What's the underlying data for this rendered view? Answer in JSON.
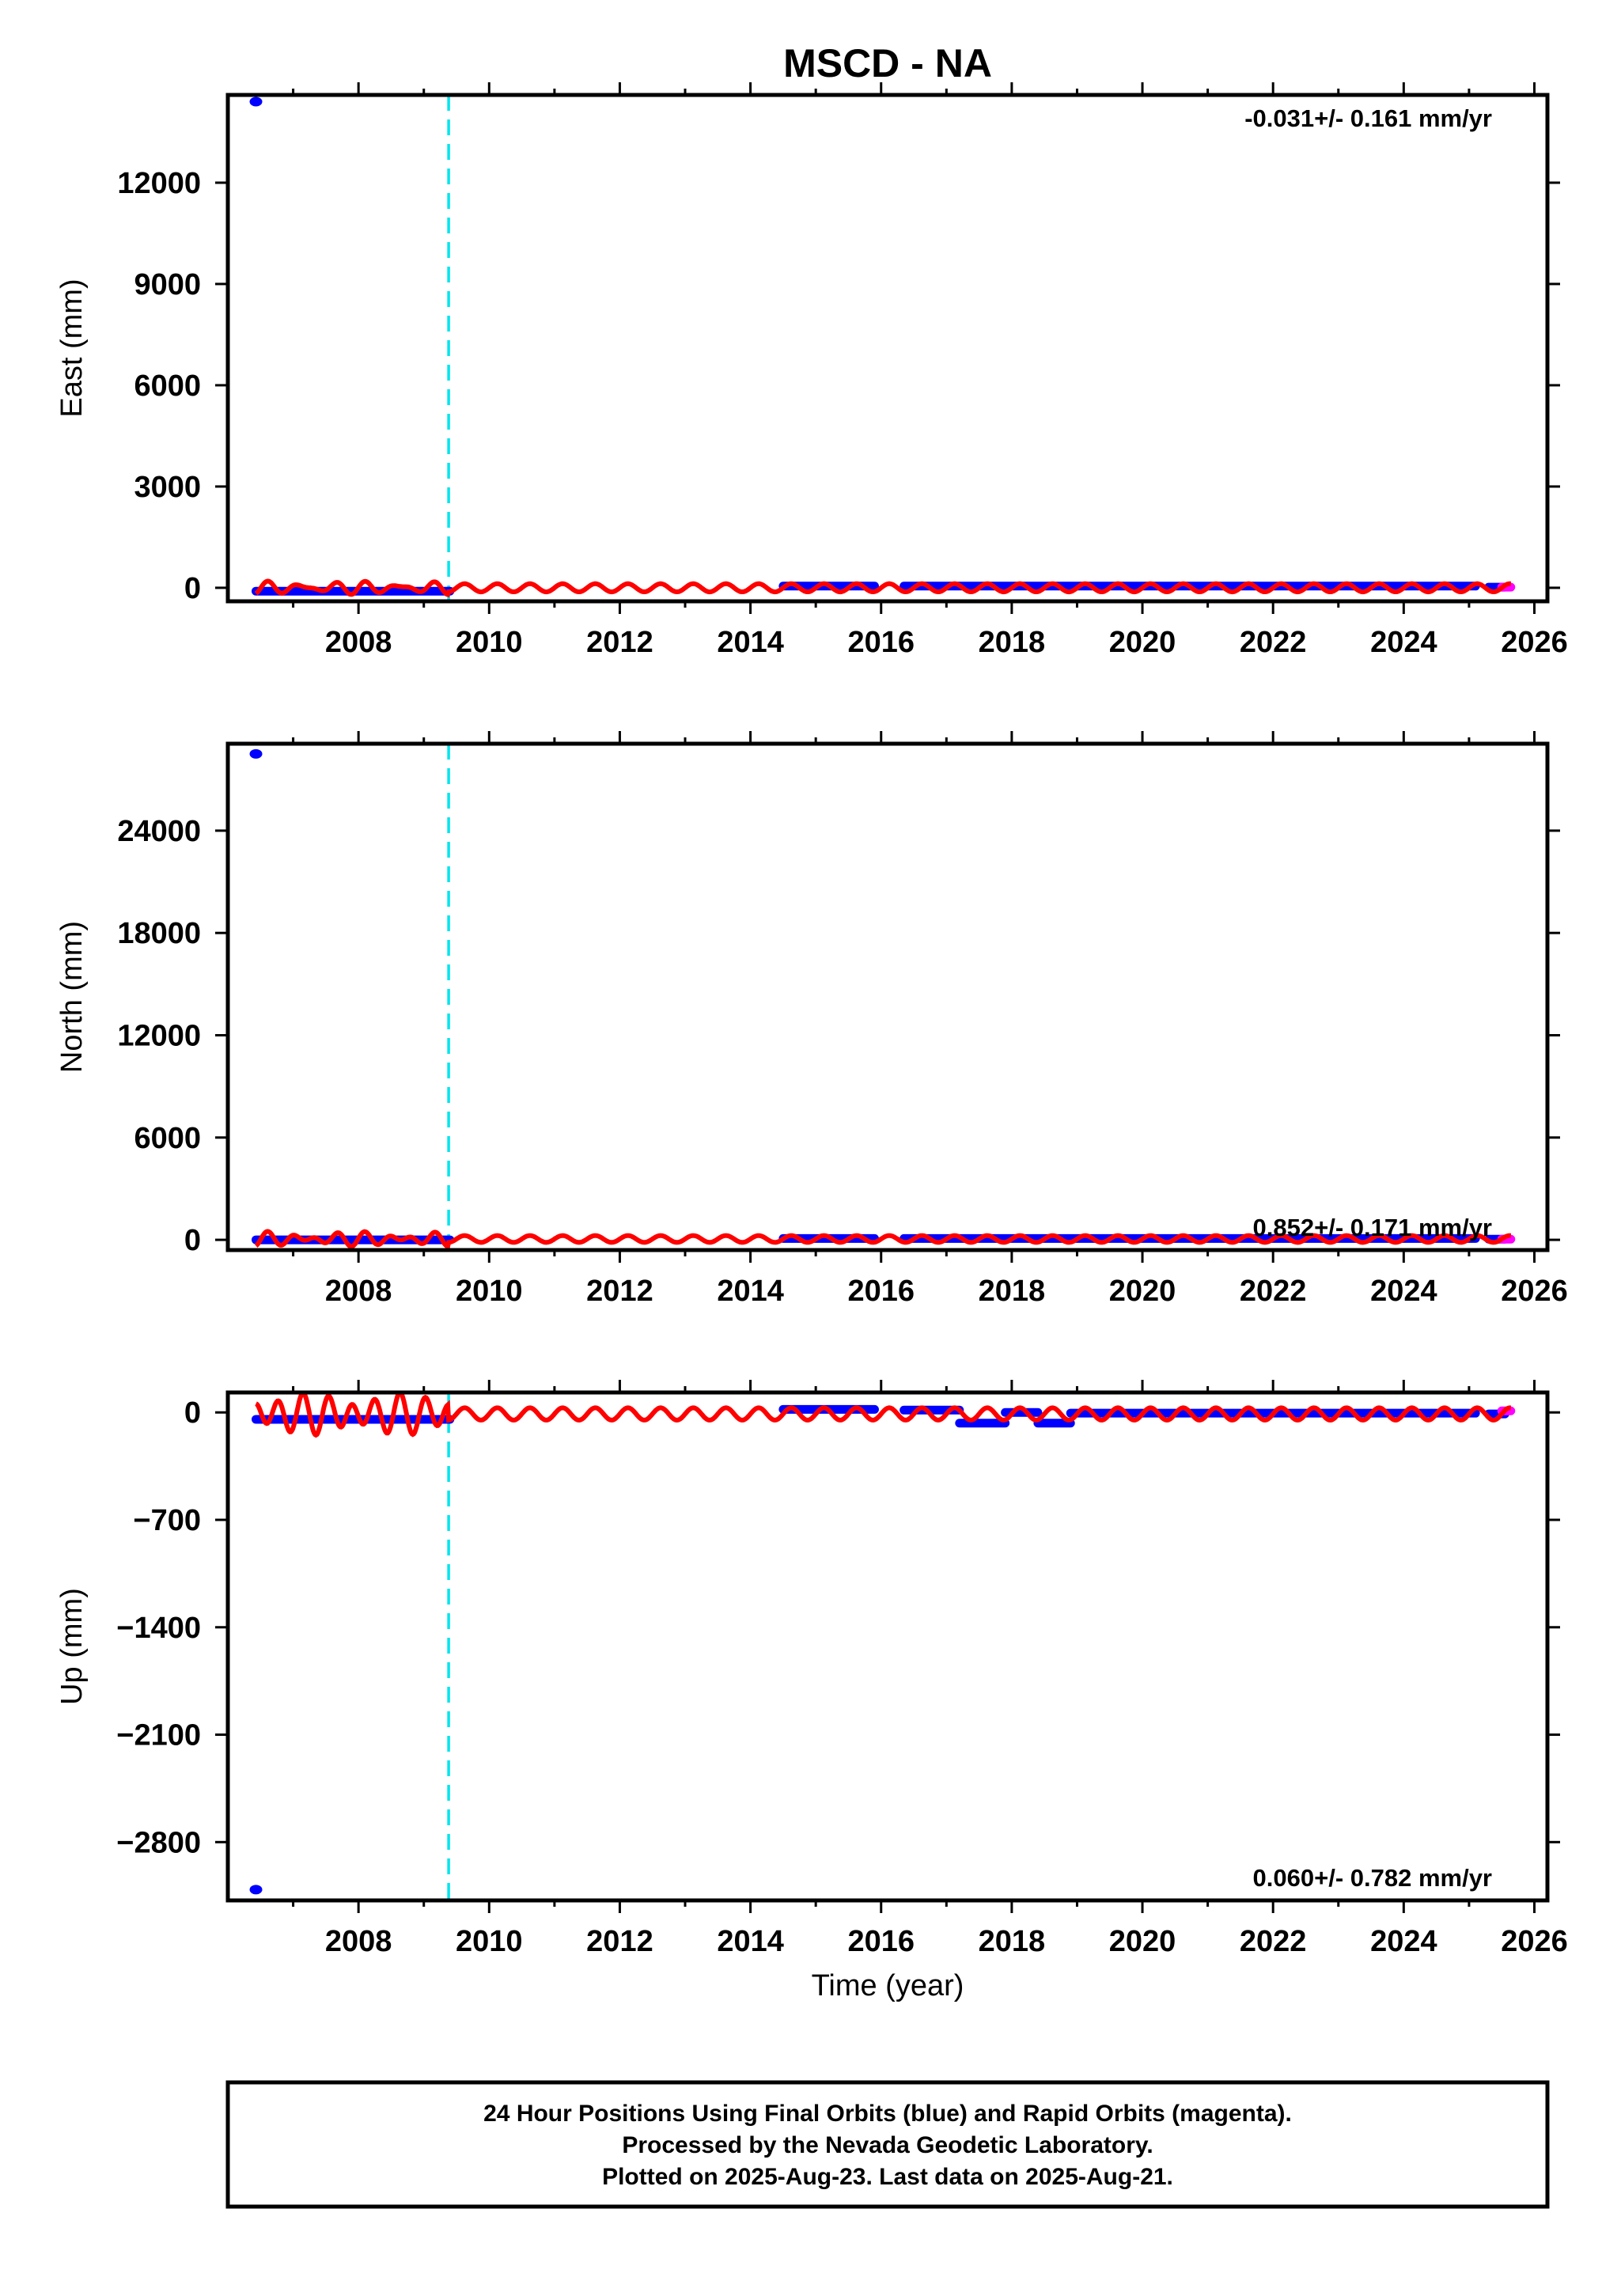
{
  "title": "MSCD - NA",
  "x_axis_label": "Time (year)",
  "colors": {
    "final_orbits": "#0000ff",
    "rapid_orbits": "#ff00ff",
    "model": "#ff0000",
    "event_marker": "#00e5ee"
  },
  "footer": {
    "line1": "24 Hour Positions Using Final Orbits (blue) and Rapid Orbits (magenta).",
    "line2": "Processed by the Nevada Geodetic Laboratory.",
    "line3": "Plotted on 2025-Aug-23. Last data on 2025-Aug-21."
  },
  "chart_data": [
    {
      "type": "scatter",
      "name": "east",
      "ylabel": "East (mm)",
      "rate_text": "-0.031+/- 0.161 mm/yr",
      "rate_position": "top-right",
      "xlim": [
        2006.0,
        2026.2
      ],
      "ylim": [
        -400,
        14600
      ],
      "x_ticks": [
        2008,
        2010,
        2012,
        2014,
        2016,
        2018,
        2020,
        2022,
        2024,
        2026
      ],
      "y_ticks": [
        0,
        3000,
        6000,
        9000,
        12000
      ],
      "event_lines_x": [
        2009.38
      ],
      "outliers": [
        {
          "x": 2006.43,
          "y": 14400
        }
      ],
      "segments": [
        {
          "x0": 2006.43,
          "x1": 2009.4,
          "y": -100
        },
        {
          "x0": 2014.5,
          "x1": 2015.9,
          "y": 50
        },
        {
          "x0": 2016.35,
          "x1": 2025.1,
          "y": 50
        },
        {
          "x0": 2025.3,
          "x1": 2025.55,
          "y": 20
        }
      ],
      "rapid": [
        {
          "x0": 2025.5,
          "x1": 2025.64,
          "y": 20
        }
      ],
      "model": {
        "x0": 2006.43,
        "x1": 2025.64,
        "base": 0,
        "amp": 120,
        "period": 0.5,
        "pre_offset": 80,
        "pre_end": 2009.38
      }
    },
    {
      "type": "scatter",
      "name": "north",
      "ylabel": "North (mm)",
      "rate_text": "0.852+/- 0.171 mm/yr",
      "rate_position": "bottom-right",
      "xlim": [
        2006.0,
        2026.2
      ],
      "ylim": [
        -600,
        29100
      ],
      "x_ticks": [
        2008,
        2010,
        2012,
        2014,
        2016,
        2018,
        2020,
        2022,
        2024,
        2026
      ],
      "y_ticks": [
        0,
        6000,
        12000,
        18000,
        24000
      ],
      "event_lines_x": [
        2009.38
      ],
      "outliers": [
        {
          "x": 2006.43,
          "y": 28500
        }
      ],
      "segments": [
        {
          "x0": 2006.43,
          "x1": 2009.4,
          "y": 0
        },
        {
          "x0": 2014.5,
          "x1": 2015.9,
          "y": 80
        },
        {
          "x0": 2016.35,
          "x1": 2025.1,
          "y": 80
        },
        {
          "x0": 2025.3,
          "x1": 2025.55,
          "y": 40
        }
      ],
      "rapid": [
        {
          "x0": 2025.5,
          "x1": 2025.64,
          "y": 40
        }
      ],
      "model": {
        "x0": 2006.43,
        "x1": 2025.64,
        "base": 50,
        "amp": 200,
        "period": 0.5,
        "pre_offset": 250,
        "pre_end": 2009.38
      }
    },
    {
      "type": "scatter",
      "name": "up",
      "ylabel": "Up (mm)",
      "rate_text": "0.060+/- 0.782 mm/yr",
      "rate_position": "bottom-right",
      "xlim": [
        2006.0,
        2026.2
      ],
      "ylim": [
        -3180,
        130
      ],
      "x_ticks": [
        2008,
        2010,
        2012,
        2014,
        2016,
        2018,
        2020,
        2022,
        2024,
        2026
      ],
      "y_ticks": [
        0,
        -700,
        -1400,
        -2100,
        -2800
      ],
      "y_tick_labels": [
        "0",
        "−700",
        "−1400",
        "−2100",
        "−2800"
      ],
      "event_lines_x": [
        2009.38
      ],
      "outliers": [
        {
          "x": 2006.43,
          "y": -3110
        }
      ],
      "segments": [
        {
          "x0": 2006.43,
          "x1": 2009.4,
          "y": -45
        },
        {
          "x0": 2014.5,
          "x1": 2015.9,
          "y": 20
        },
        {
          "x0": 2016.35,
          "x1": 2017.2,
          "y": 15
        },
        {
          "x0": 2017.2,
          "x1": 2017.9,
          "y": -70
        },
        {
          "x0": 2017.9,
          "x1": 2018.4,
          "y": 0
        },
        {
          "x0": 2018.4,
          "x1": 2018.9,
          "y": -70
        },
        {
          "x0": 2018.9,
          "x1": 2025.1,
          "y": -5
        },
        {
          "x0": 2025.3,
          "x1": 2025.55,
          "y": -10
        }
      ],
      "rapid": [
        {
          "x0": 2025.5,
          "x1": 2025.64,
          "y": 10
        }
      ],
      "model": {
        "x0": 2006.43,
        "x1": 2025.64,
        "base": -10,
        "amp": 40,
        "period": 0.5,
        "pre_offset": -100,
        "pre_end": 2009.38
      }
    }
  ]
}
